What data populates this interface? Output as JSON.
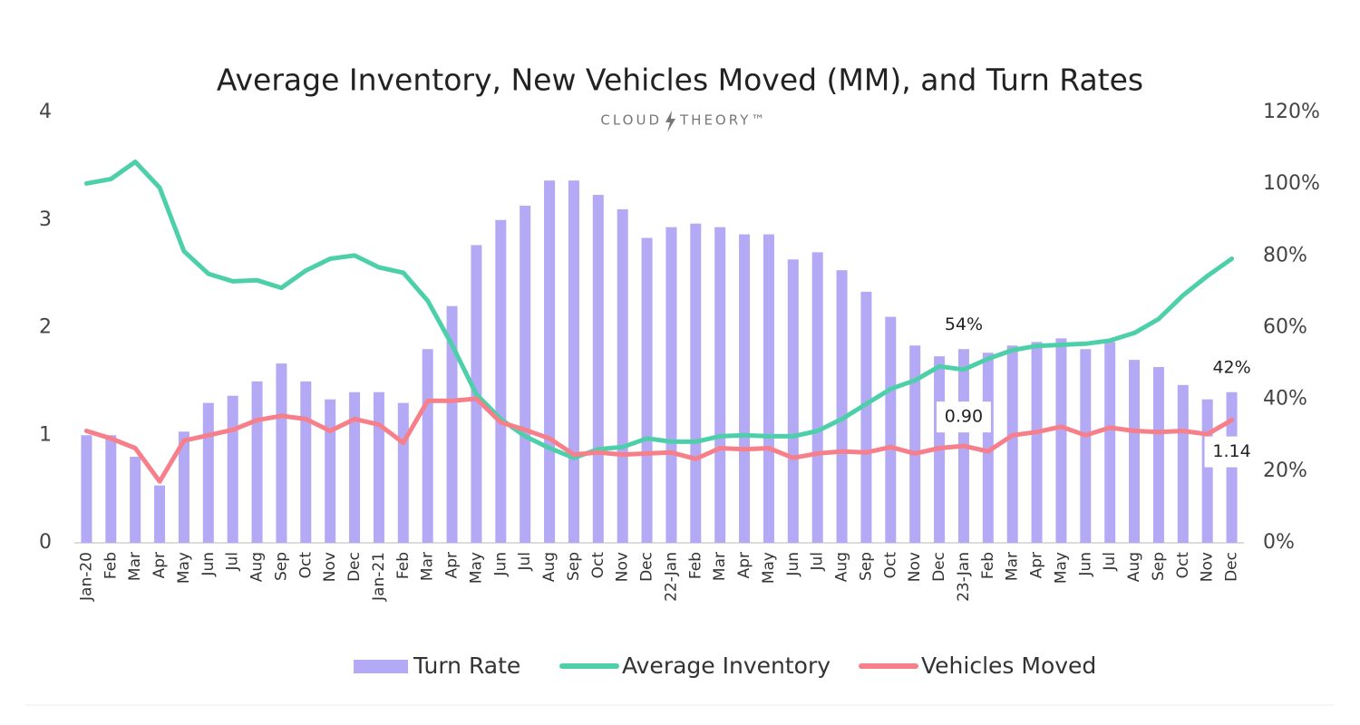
{
  "chart_data": {
    "type": "combo",
    "title": "Average Inventory, New Vehicles Moved (MM), and Turn Rates",
    "logo": {
      "left": "CLOUD",
      "right": "THEORY™"
    },
    "categories": [
      "Jan-20",
      "Feb",
      "Mar",
      "Apr",
      "May",
      "Jun",
      "Jul",
      "Aug",
      "Sep",
      "Oct",
      "Nov",
      "Dec",
      "Jan-21",
      "Feb",
      "Mar",
      "Apr",
      "May",
      "Jun",
      "Jul",
      "Aug",
      "Sep",
      "Oct",
      "Nov",
      "Dec",
      "22-Jan",
      "Feb",
      "Mar",
      "Apr",
      "May",
      "Jun",
      "Jul",
      "Aug",
      "Sep",
      "Oct",
      "Nov",
      "Dec",
      "23-Jan",
      "Feb",
      "Mar",
      "Apr",
      "May",
      "Jun",
      "Jul",
      "Aug",
      "Sep",
      "Oct",
      "Nov",
      "Dec"
    ],
    "ylim": [
      0,
      4
    ],
    "yticks": [
      0,
      1,
      2,
      3,
      4
    ],
    "y2lim": [
      0,
      120
    ],
    "y2ticks": [
      {
        "value": 0,
        "label": "0%"
      },
      {
        "value": 20,
        "label": "20%"
      },
      {
        "value": 40,
        "label": "40%"
      },
      {
        "value": 60,
        "label": "60%"
      },
      {
        "value": 80,
        "label": "80%"
      },
      {
        "value": 100,
        "label": "100%"
      },
      {
        "value": 120,
        "label": "120%"
      }
    ],
    "grid": false,
    "legend": "bottom",
    "series": [
      {
        "name": "Turn Rate",
        "type": "bar",
        "axis": "y2",
        "color": "#b4a9f4",
        "values": [
          30,
          30,
          24,
          16,
          31,
          39,
          41,
          45,
          50,
          45,
          40,
          42,
          42,
          39,
          54,
          66,
          83,
          90,
          94,
          101,
          101,
          97,
          93,
          85,
          88,
          89,
          88,
          86,
          86,
          79,
          81,
          76,
          70,
          63,
          55,
          52,
          54,
          53,
          55,
          56,
          57,
          54,
          56,
          51,
          49,
          44,
          40,
          42
        ],
        "value_labels": [
          null,
          null,
          null,
          null,
          null,
          null,
          null,
          null,
          null,
          null,
          null,
          null,
          null,
          null,
          null,
          null,
          null,
          null,
          null,
          null,
          null,
          null,
          null,
          null,
          null,
          null,
          null,
          null,
          null,
          null,
          null,
          null,
          null,
          null,
          null,
          null,
          "54%",
          null,
          null,
          null,
          null,
          null,
          null,
          null,
          null,
          null,
          null,
          "42%"
        ]
      },
      {
        "name": "Average Inventory",
        "type": "line",
        "color": "#4dd0aa",
        "values": [
          3.34,
          3.38,
          3.54,
          3.3,
          2.71,
          2.5,
          2.43,
          2.44,
          2.37,
          2.53,
          2.64,
          2.67,
          2.56,
          2.51,
          2.25,
          1.84,
          1.38,
          1.15,
          0.99,
          0.88,
          0.79,
          0.87,
          0.89,
          0.97,
          0.94,
          0.94,
          0.99,
          1.0,
          0.99,
          0.99,
          1.04,
          1.15,
          1.29,
          1.43,
          1.51,
          1.64,
          1.61,
          1.71,
          1.79,
          1.83,
          1.84,
          1.85,
          1.88,
          1.95,
          2.08,
          2.3,
          2.48,
          2.64
        ]
      },
      {
        "name": "Vehicles Moved",
        "type": "line",
        "color": "#f77f8a",
        "values": [
          1.04,
          0.97,
          0.88,
          0.57,
          0.95,
          1.0,
          1.05,
          1.14,
          1.18,
          1.15,
          1.04,
          1.15,
          1.1,
          0.93,
          1.32,
          1.32,
          1.34,
          1.12,
          1.05,
          0.97,
          0.82,
          0.84,
          0.82,
          0.83,
          0.84,
          0.78,
          0.88,
          0.87,
          0.88,
          0.79,
          0.83,
          0.85,
          0.84,
          0.89,
          0.83,
          0.88,
          0.9,
          0.85,
          1.0,
          1.03,
          1.08,
          1.0,
          1.07,
          1.04,
          1.03,
          1.04,
          1.01,
          1.14
        ],
        "value_labels": [
          null,
          null,
          null,
          null,
          null,
          null,
          null,
          null,
          null,
          null,
          null,
          null,
          null,
          null,
          null,
          null,
          null,
          null,
          null,
          null,
          null,
          null,
          null,
          null,
          null,
          null,
          null,
          null,
          null,
          null,
          null,
          null,
          null,
          null,
          null,
          null,
          "0.90",
          null,
          null,
          null,
          null,
          null,
          null,
          null,
          null,
          null,
          null,
          "1.14"
        ]
      }
    ]
  }
}
